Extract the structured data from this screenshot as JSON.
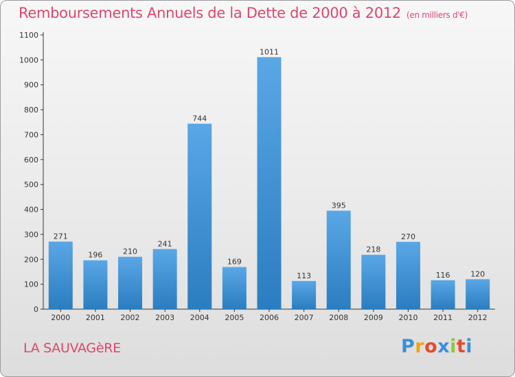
{
  "header": {
    "title": "Remboursements Annuels de la Dette de 2000 à 2012",
    "units": "(en milliers d'€)"
  },
  "footer": {
    "commune": "LA SAUVAGèRE",
    "logo_letters": [
      "P",
      "r",
      "o",
      "x",
      "i",
      "t",
      "i"
    ],
    "logo_colors": [
      "#3a8fd8",
      "#f2a20a",
      "#e34b2f",
      "#3a8fd8",
      "#8cc640",
      "#e34b2f",
      "#3a8fd8"
    ]
  },
  "chart_data": {
    "type": "bar",
    "title": "Remboursements Annuels de la Dette de 2000 à 2012",
    "subtitle": "(en milliers d'€)",
    "categories": [
      "2000",
      "2001",
      "2002",
      "2003",
      "2004",
      "2005",
      "2006",
      "2007",
      "2008",
      "2009",
      "2010",
      "2011",
      "2012"
    ],
    "values": [
      271,
      196,
      210,
      241,
      744,
      169,
      1011,
      113,
      395,
      218,
      270,
      116,
      120
    ],
    "ylim": [
      0,
      1100
    ],
    "yticks": [
      0,
      100,
      200,
      300,
      400,
      500,
      600,
      700,
      800,
      900,
      1000,
      1100
    ],
    "grid": false,
    "bar_color_top": "#5aa7e6",
    "bar_color_bottom": "#2a7dc0",
    "data_labels": true
  }
}
